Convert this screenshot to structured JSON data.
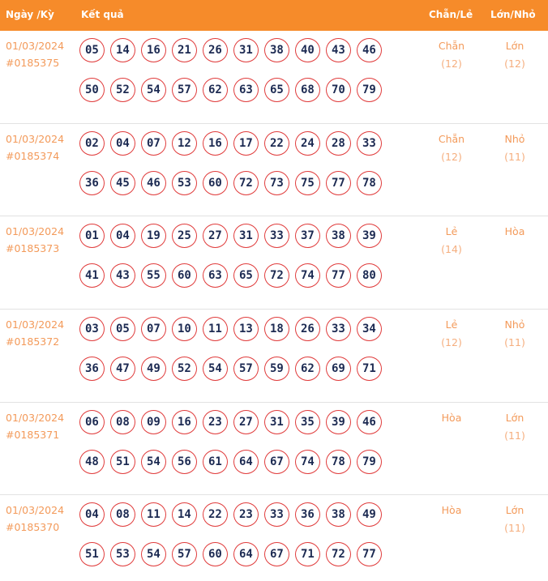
{
  "header": {
    "date_label": "Ngày /Kỳ",
    "result_label": "Kết quả",
    "parity_label": "Chẵn/Lẻ",
    "size_label": "Lớn/Nhỏ"
  },
  "rows": [
    {
      "date": "01/03/2024",
      "draw": "#0185375",
      "balls_top": [
        "05",
        "14",
        "16",
        "21",
        "26",
        "31",
        "38",
        "40",
        "43",
        "46"
      ],
      "balls_bottom": [
        "50",
        "52",
        "54",
        "57",
        "62",
        "63",
        "65",
        "68",
        "70",
        "79"
      ],
      "parity": "Chẵn",
      "parity_count": "(12)",
      "size": "Lớn",
      "size_count": "(12)"
    },
    {
      "date": "01/03/2024",
      "draw": "#0185374",
      "balls_top": [
        "02",
        "04",
        "07",
        "12",
        "16",
        "17",
        "22",
        "24",
        "28",
        "33"
      ],
      "balls_bottom": [
        "36",
        "45",
        "46",
        "53",
        "60",
        "72",
        "73",
        "75",
        "77",
        "78"
      ],
      "parity": "Chẵn",
      "parity_count": "(12)",
      "size": "Nhỏ",
      "size_count": "(11)"
    },
    {
      "date": "01/03/2024",
      "draw": "#0185373",
      "balls_top": [
        "01",
        "04",
        "19",
        "25",
        "27",
        "31",
        "33",
        "37",
        "38",
        "39"
      ],
      "balls_bottom": [
        "41",
        "43",
        "55",
        "60",
        "63",
        "65",
        "72",
        "74",
        "77",
        "80"
      ],
      "parity": "Lẻ",
      "parity_count": "(14)",
      "size": "Hòa",
      "size_count": ""
    },
    {
      "date": "01/03/2024",
      "draw": "#0185372",
      "balls_top": [
        "03",
        "05",
        "07",
        "10",
        "11",
        "13",
        "18",
        "26",
        "33",
        "34"
      ],
      "balls_bottom": [
        "36",
        "47",
        "49",
        "52",
        "54",
        "57",
        "59",
        "62",
        "69",
        "71"
      ],
      "parity": "Lẻ",
      "parity_count": "(12)",
      "size": "Nhỏ",
      "size_count": "(11)"
    },
    {
      "date": "01/03/2024",
      "draw": "#0185371",
      "balls_top": [
        "06",
        "08",
        "09",
        "16",
        "23",
        "27",
        "31",
        "35",
        "39",
        "46"
      ],
      "balls_bottom": [
        "48",
        "51",
        "54",
        "56",
        "61",
        "64",
        "67",
        "74",
        "78",
        "79"
      ],
      "parity": "Hòa",
      "parity_count": "",
      "size": "Lớn",
      "size_count": "(11)"
    },
    {
      "date": "01/03/2024",
      "draw": "#0185370",
      "balls_top": [
        "04",
        "08",
        "11",
        "14",
        "22",
        "23",
        "33",
        "36",
        "38",
        "49"
      ],
      "balls_bottom": [
        "51",
        "53",
        "54",
        "57",
        "60",
        "64",
        "67",
        "71",
        "72",
        "77"
      ],
      "parity": "Hòa",
      "parity_count": "",
      "size": "Lớn",
      "size_count": "(11)"
    }
  ]
}
